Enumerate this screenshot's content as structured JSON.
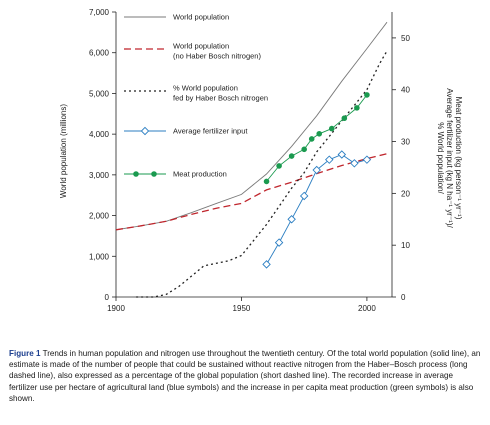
{
  "chart_data": {
    "type": "line",
    "xlim": [
      1900,
      2010
    ],
    "ylim_left": [
      0,
      7000
    ],
    "ylim_right": [
      0,
      55
    ],
    "x_ticks": [
      "1900",
      "1950",
      "2000"
    ],
    "y_ticks_left": [
      "0",
      "1,000",
      "2,000",
      "3,000",
      "4,000",
      "5,000",
      "6,000",
      "7,000"
    ],
    "y_ticks_right": [
      "0",
      "10",
      "20",
      "30",
      "40",
      "50"
    ],
    "ylabel_left": "World population (millions)",
    "ylabel_right": [
      "% World population/",
      "Average fertilizer input (kg N ha⁻¹ yr⁻¹)/",
      "Meat production (kg person⁻¹ yr⁻¹)"
    ],
    "series": [
      {
        "name": "World population",
        "style": "solid",
        "color": "#7a7a7a",
        "axis": "left",
        "x": [
          1900,
          1910,
          1920,
          1930,
          1940,
          1950,
          1960,
          1970,
          1980,
          1990,
          2000,
          2008
        ],
        "y": [
          1650,
          1750,
          1860,
          2070,
          2300,
          2520,
          3020,
          3700,
          4450,
          5300,
          6100,
          6750
        ]
      },
      {
        "name": "World population\n(no Haber Bosch nitrogen)",
        "style": "long-dash",
        "color": "#c0262d",
        "axis": "left",
        "x": [
          1900,
          1910,
          1920,
          1930,
          1940,
          1950,
          1960,
          1970,
          1980,
          1990,
          2000,
          2008
        ],
        "y": [
          1650,
          1750,
          1860,
          2030,
          2180,
          2300,
          2630,
          2820,
          3030,
          3230,
          3400,
          3520
        ]
      },
      {
        "name": "% World population\nfed by Haber Bosch nitrogen",
        "style": "short-dash",
        "color": "#222222",
        "axis": "right",
        "x": [
          1908,
          1915,
          1920,
          1925,
          1930,
          1935,
          1940,
          1945,
          1950,
          1955,
          1960,
          1965,
          1970,
          1975,
          1980,
          1985,
          1990,
          1995,
          2000,
          2005,
          2008
        ],
        "y": [
          0,
          0,
          0.5,
          2,
          4,
          6,
          6.5,
          7,
          8,
          11,
          14,
          17.5,
          21,
          24,
          28,
          31,
          34,
          37,
          40,
          45,
          47.5
        ]
      },
      {
        "name": "Average fertilizer input",
        "style": "open-diamond",
        "color": "#2b7ec2",
        "axis": "right",
        "x": [
          1960,
          1965,
          1970,
          1975,
          1980,
          1985,
          1990,
          1995,
          2000
        ],
        "y": [
          6.3,
          10.5,
          15,
          19.5,
          24.5,
          26.5,
          27.5,
          25.8,
          26.5
        ]
      },
      {
        "name": "Meat production",
        "style": "filled-circle",
        "color": "#1a9a4f",
        "axis": "right",
        "x": [
          1960,
          1965,
          1970,
          1975,
          1978,
          1981,
          1986,
          1991,
          1996,
          2000
        ],
        "y": [
          22.3,
          25.3,
          27.2,
          28.5,
          30.5,
          31.5,
          32.5,
          34.5,
          36.5,
          39
        ]
      }
    ]
  },
  "caption": {
    "label": "Figure 1",
    "text": " Trends in human population and nitrogen use throughout the twentieth century. Of the total world population (solid line), an estimate is made of the number of people that could be sustained without reactive nitrogen from the Haber–Bosch process (long dashed line), also expressed as a percentage of the global population (short dashed line). The recorded increase in average fertilizer use per hectare of agricultural land (blue symbols) and the increase in per capita meat production (green symbols) is also shown."
  }
}
